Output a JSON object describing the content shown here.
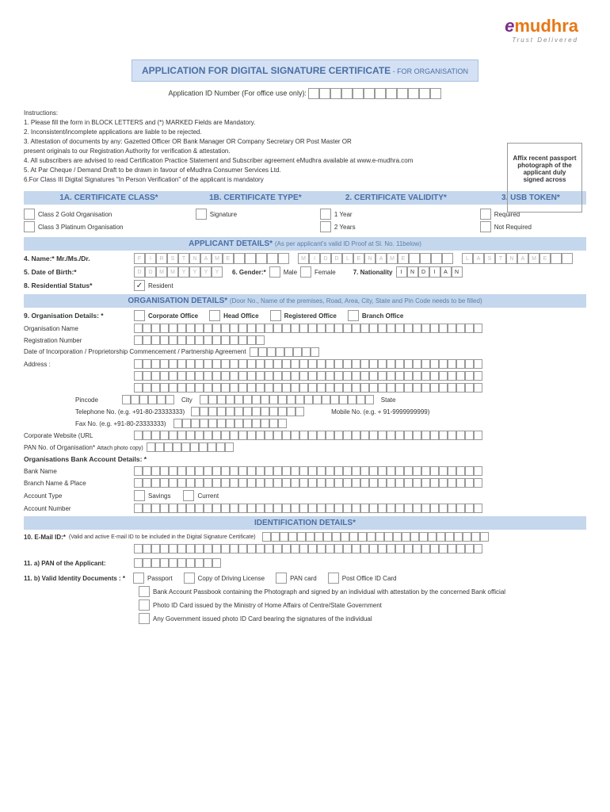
{
  "logo": {
    "prefix": "e",
    "brand": "mudhra",
    "tagline": "Trust Delivered"
  },
  "title": {
    "main": "APPLICATION FOR DIGITAL SIGNATURE CERTIFICATE",
    "sub": "- FOR ORGANISATION"
  },
  "app_id_label": "Application ID Number (For office use only):",
  "instructions": {
    "header": "Instructions:",
    "items": [
      "1. Please fill the form in BLOCK LETTERS and (*) MARKED Fields are Mandatory.",
      "2. Inconsistent/incomplete applications are liable to be rejected.",
      "3. Attestation of documents by any: Gazetted Officer OR Bank Manager OR Company Secretary OR Post Master OR",
      "    present originals to our Registration Authority for verification & attestation.",
      "4. All subscribers are advised to read Certification Practice Statement and Subscriber agreement eMudhra available at www.e-mudhra.com",
      "5. At Par Cheque / Demand Draft to be drawn in favour of eMudhra Consumer Services Ltd.",
      "6.For Class III Digital Signatures \"In Person Verification\" of the applicant is mandatory"
    ]
  },
  "photo_box": "Affix recent passport photograph of the applicant duly signed across",
  "cert": {
    "a": {
      "title": "1A. CERTIFICATE CLASS*",
      "opts": [
        "Class 2 Gold Organisation",
        "Class 3 Platinum Organisation"
      ]
    },
    "b": {
      "title": "1B. CERTIFICATE TYPE*",
      "opts": [
        "Signature"
      ]
    },
    "c": {
      "title": "2. CERTIFICATE VALIDITY*",
      "opts": [
        "1 Year",
        "2 Years"
      ]
    },
    "d": {
      "title": "3. USB TOKEN*",
      "opts": [
        "Required",
        "Not Required"
      ]
    }
  },
  "applicant": {
    "header": "APPLICANT DETAILS*",
    "hint": "(As per applicant's valid ID Proof at Sl. No. 11below)",
    "name_label": "4. Name:* Mr./Ms./Dr.",
    "name_hint": {
      "first": "FIRST NAME",
      "middle": "MIDDLE NAME",
      "last": "LAST NAME"
    },
    "dob_label": "5. Date of Birth:*",
    "dob_hint": "DDMMYYYY",
    "gender_label": "6. Gender:*",
    "gender_m": "Male",
    "gender_f": "Female",
    "nat_label": "7. Nationality",
    "nat_val": "INDIAN",
    "res_label": "8. Residential Status*",
    "res_val": "Resident"
  },
  "org": {
    "header": "ORGANISATION DETAILS*",
    "hint": "(Door No., Name of the premises, Road, Area, City, State and Pin Code needs to be filled)",
    "details_label": "9. Organisation Details: *",
    "office_types": [
      "Corporate Office",
      "Head Office",
      "Registered Office",
      "Branch Office"
    ],
    "name_label": "Organisation Name",
    "reg_label": "Registration Number",
    "doi_label": "Date of Incorporation / Proprietorship Commencement / Partnership Agreement",
    "addr_label": "Address :",
    "pin_label": "Pincode",
    "city_label": "City",
    "state_label": "State",
    "tel_label": "Telephone No. (e.g. +91-80-23333333)",
    "mob_label": "Mobile No. (e.g. + 91-9999999999)",
    "fax_label": "Fax No. (e.g. +91-80-23333333)",
    "web_label": "Corporate Website (URL",
    "pan_label": "PAN No. of Organisation*",
    "pan_hint": "Attach photo copy)",
    "bank_header": "Organisations Bank Account Details: *",
    "bank_name": "Bank Name",
    "branch": "Branch Name & Place",
    "acct_type": "Account Type",
    "savings": "Savings",
    "current": "Current",
    "acct_num": "Account Number"
  },
  "ident": {
    "header": "IDENTIFICATION DETAILS*",
    "email_label": "10. E-Mail ID:*",
    "email_hint": "(Valid and active E-mail ID to be included in the Digital Signature Certificate)",
    "pan_label": "11. a) PAN of the Applicant:",
    "docs_label": "11. b) Valid Identity Documents : *",
    "doc_opts": [
      "Passport",
      "Copy of Driving License",
      "PAN card",
      "Post Office ID Card"
    ],
    "doc_extra": [
      "Bank Account Passbook containing the Photograph and signed by an individual with attestation by the concerned Bank official",
      "Photo ID Card issued by the Ministry of Home Affairs of Centre/State Government",
      "Any Government issued photo ID Card bearing the signatures of the individual"
    ]
  }
}
